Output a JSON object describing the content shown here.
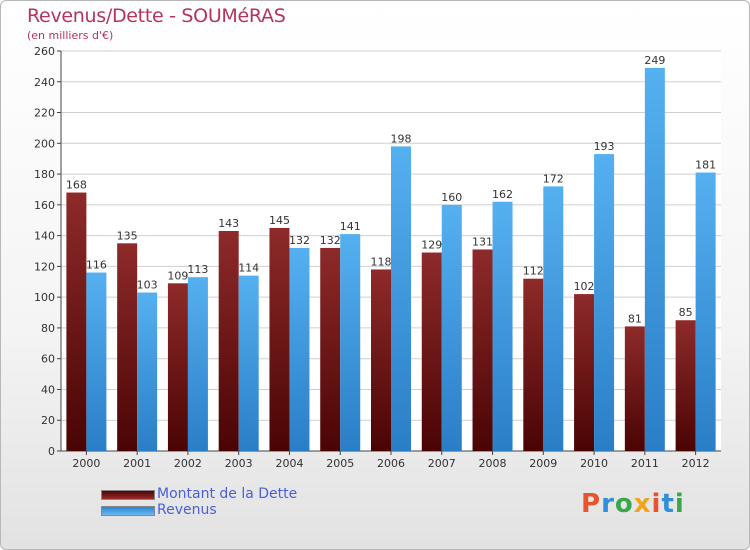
{
  "header": {
    "title": "Revenus/Dette - SOUMéRAS",
    "subtitle": "(en milliers d'€)"
  },
  "logo": {
    "text": "Proxiti"
  },
  "colors": {
    "dette": "#7a1414",
    "revenus": "#3d9be0",
    "grid": "#cfcfcf",
    "axis": "#444444"
  },
  "chart_data": {
    "type": "bar",
    "categories": [
      "2000",
      "2001",
      "2002",
      "2003",
      "2004",
      "2005",
      "2006",
      "2007",
      "2008",
      "2009",
      "2010",
      "2011",
      "2012"
    ],
    "series": [
      {
        "name": "Montant de la Dette",
        "values": [
          168,
          135,
          109,
          143,
          145,
          132,
          118,
          129,
          131,
          112,
          102,
          81,
          85
        ]
      },
      {
        "name": "Revenus",
        "values": [
          116,
          103,
          113,
          114,
          132,
          141,
          198,
          160,
          162,
          172,
          193,
          249,
          181
        ]
      }
    ],
    "ylim": [
      0,
      260
    ],
    "yticks": [
      0,
      20,
      40,
      60,
      80,
      100,
      120,
      140,
      160,
      180,
      200,
      220,
      240,
      260
    ],
    "grid": true,
    "legend_position": "bottom-left",
    "title": "Revenus/Dette - SOUMéRAS",
    "xlabel": "",
    "ylabel": "(en milliers d'€)"
  }
}
